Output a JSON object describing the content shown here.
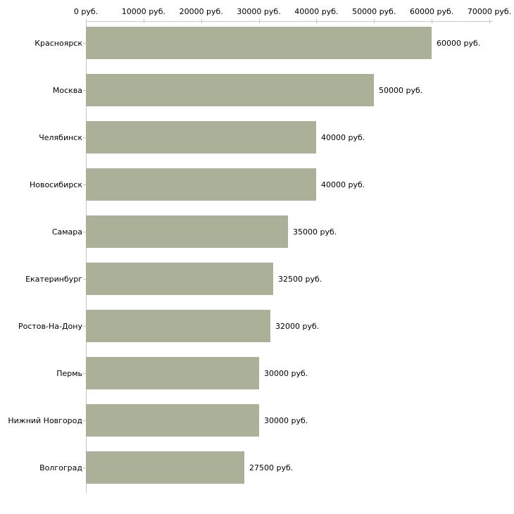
{
  "chart_data": {
    "type": "bar",
    "orientation": "horizontal",
    "title": "",
    "xlabel": "",
    "ylabel": "",
    "unit": "руб.",
    "categories": [
      "Красноярск",
      "Москва",
      "Челябинск",
      "Новосибирск",
      "Самара",
      "Екатеринбург",
      "Ростов-На-Дону",
      "Пермь",
      "Нижний Новгород",
      "Волгоград"
    ],
    "values": [
      60000,
      50000,
      40000,
      40000,
      35000,
      32500,
      32000,
      30000,
      30000,
      27500
    ],
    "value_labels": [
      "60000 руб.",
      "50000 руб.",
      "40000 руб.",
      "40000 руб.",
      "35000 руб.",
      "32500 руб.",
      "32000 руб.",
      "30000 руб.",
      "30000 руб.",
      "27500 руб."
    ],
    "x_ticks": [
      0,
      10000,
      20000,
      30000,
      40000,
      50000,
      60000,
      70000
    ],
    "x_tick_labels": [
      "0 руб.",
      "10000 руб.",
      "20000 руб.",
      "30000 руб.",
      "40000 руб.",
      "50000 руб.",
      "60000 руб.",
      "70000 руб."
    ],
    "xlim": [
      0,
      70000
    ],
    "grid": false,
    "legend": false,
    "axis_position": "top",
    "colors": {
      "bar": "#abb098",
      "axis_line": "#c9c9c9",
      "tick_mark": "#c8c89e",
      "text": "#000000",
      "background": "#ffffff"
    }
  }
}
